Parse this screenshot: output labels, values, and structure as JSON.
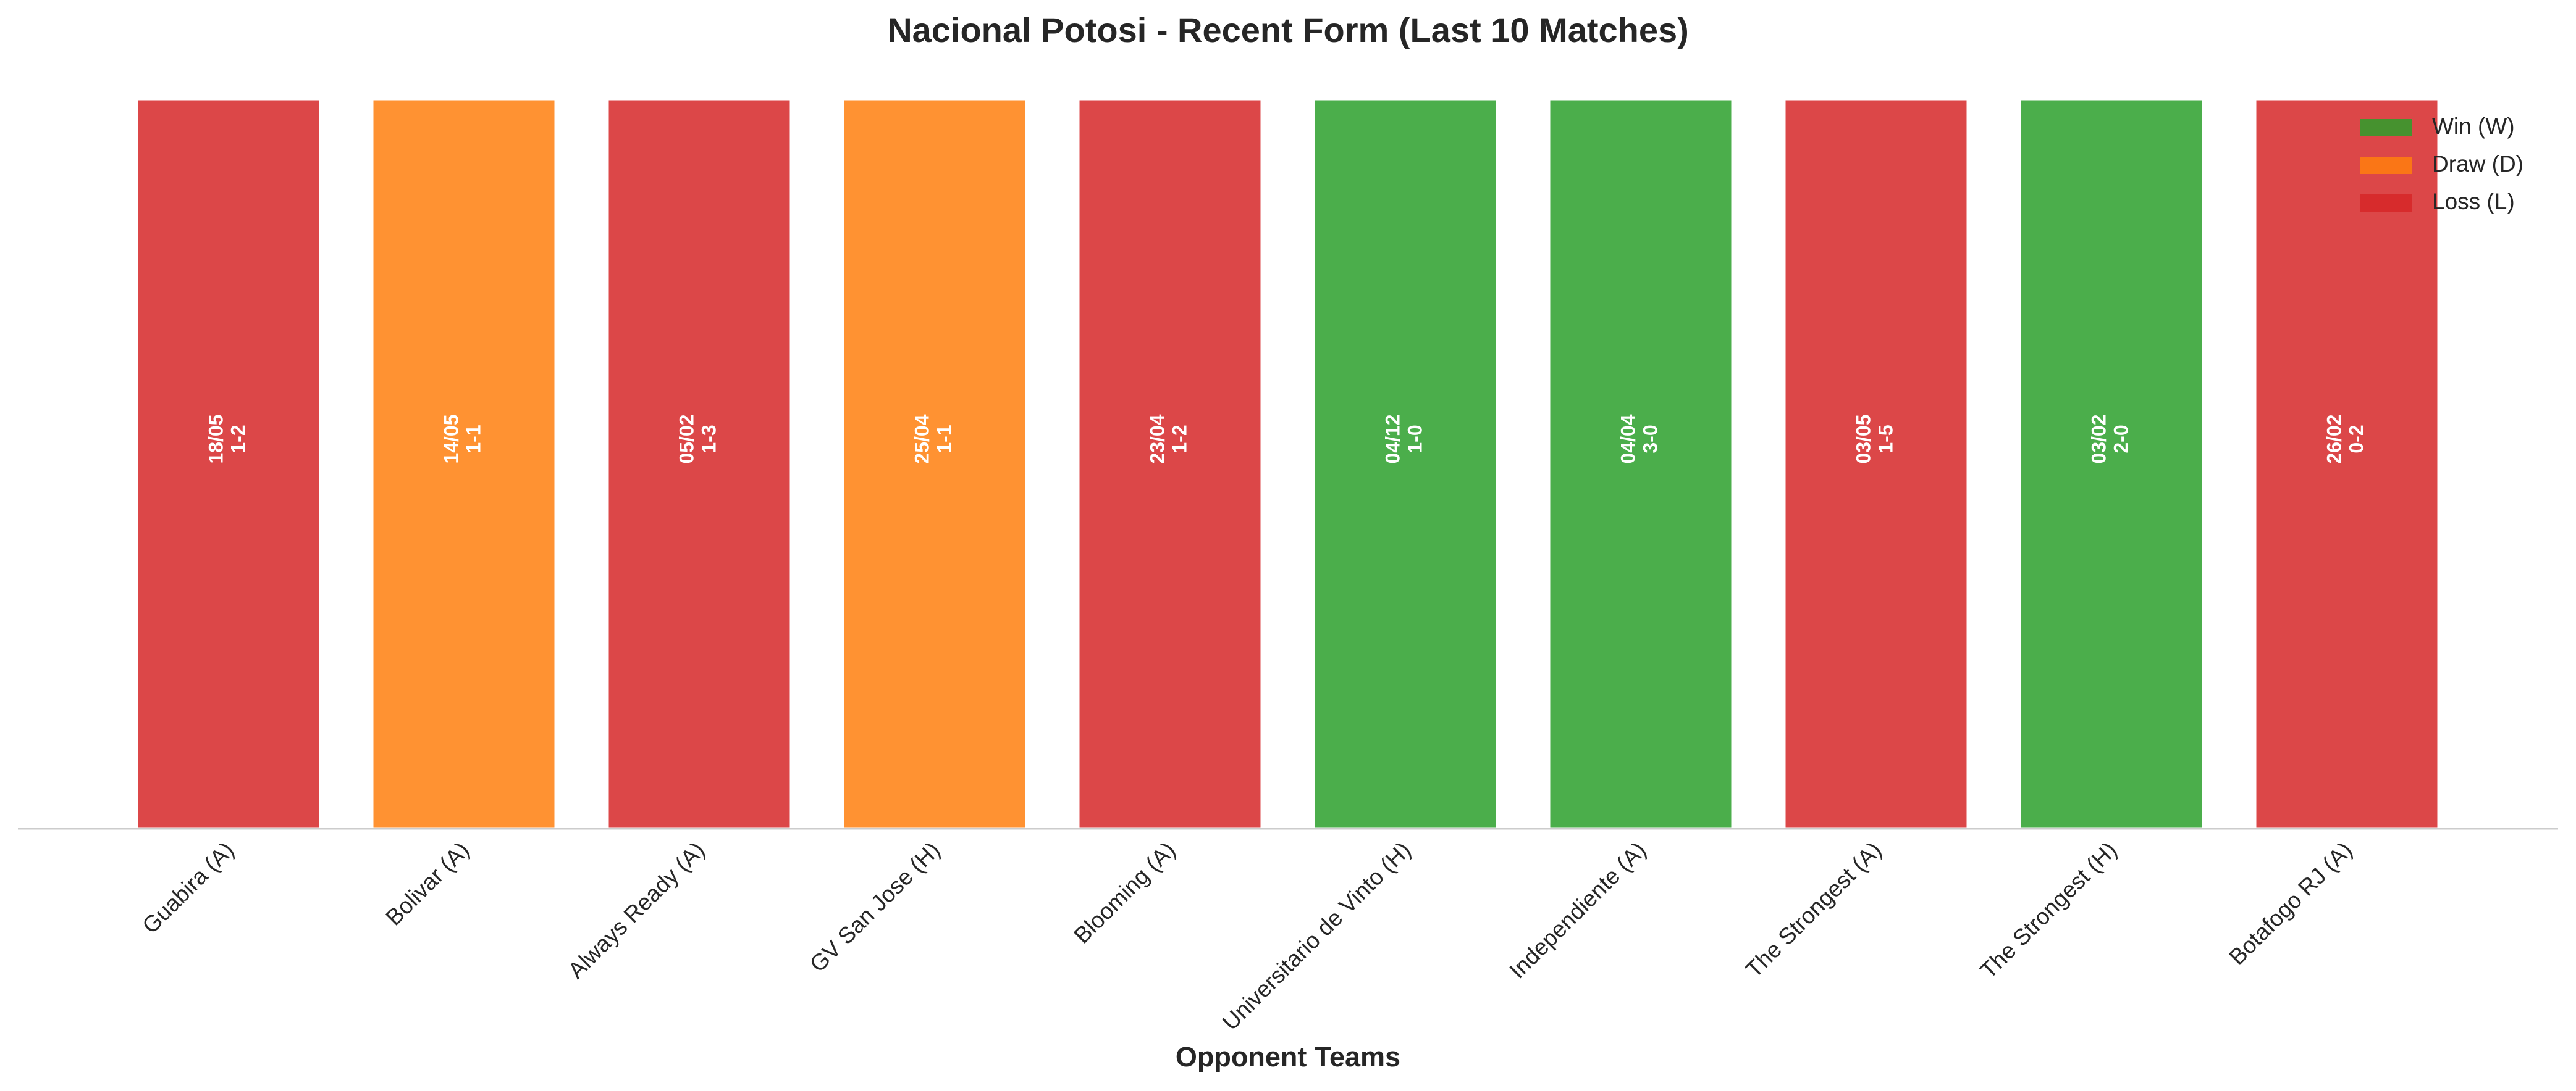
{
  "chart_data": {
    "type": "bar",
    "title": "Nacional Potosi - Recent Form (Last 10 Matches)",
    "x_label": "Opponent Teams",
    "categories": [
      "Guabira (A)",
      "Bolivar (A)",
      "Always Ready (A)",
      "GV San Jose (H)",
      "Blooming (A)",
      "Universitario de Vinto (H)",
      "Independiente (A)",
      "The Strongest (A)",
      "The Strongest (H)",
      "Botafogo RJ (A)"
    ],
    "values": [
      1,
      1,
      1,
      1,
      1,
      1,
      1,
      1,
      1,
      1
    ],
    "ylim": [
      0,
      1
    ],
    "dates": [
      "18/05",
      "14/05",
      "05/02",
      "25/04",
      "23/04",
      "04/12",
      "04/04",
      "03/05",
      "03/02",
      "26/02"
    ],
    "scores": [
      "1-2",
      "1-1",
      "1-3",
      "1-1",
      "1-2",
      "1-0",
      "3-0",
      "1-5",
      "2-0",
      "0-2"
    ],
    "colors": [
      "#d62728",
      "#ff7f0e",
      "#d62728",
      "#ff7f0e",
      "#d62728",
      "#2ca02c",
      "#2ca02c",
      "#d62728",
      "#2ca02c",
      "#d62728"
    ],
    "legend": [
      {
        "name": "Win (W)",
        "color": "#2ca02c"
      },
      {
        "name": "Draw (D)",
        "color": "#ff7f0e"
      },
      {
        "name": "Loss (L)",
        "color": "#d62728"
      }
    ],
    "legend_position": "upper right"
  }
}
